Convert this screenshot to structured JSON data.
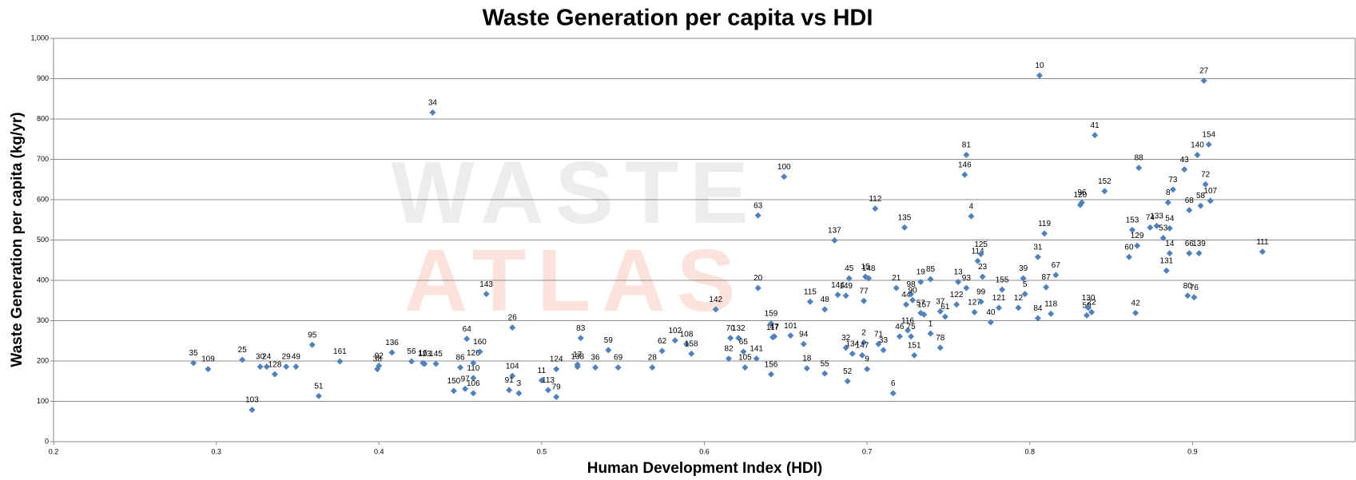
{
  "chart_data": {
    "type": "scatter",
    "title": "Waste Generation per capita vs HDI",
    "xlabel": "Human Development Index (HDI)",
    "ylabel": "Waste Generation per capita (kg/yr)",
    "watermark": [
      "WASTE",
      "ATLAS"
    ],
    "color": "#4f81bd",
    "grid": true,
    "xlim": [
      0.2,
      1.0
    ],
    "xticks": [
      0.2,
      0.3,
      0.4,
      0.5,
      0.6,
      0.7,
      0.8,
      0.9
    ],
    "ylim": [
      0,
      1000
    ],
    "yticks": [
      0,
      100,
      200,
      300,
      400,
      500,
      600,
      700,
      800,
      900,
      {
        "value": 1000,
        "label": "1,000"
      }
    ],
    "point_labels": [
      "35",
      "109",
      "25",
      "103",
      "30",
      "24",
      "128",
      "29",
      "49",
      "95",
      "51",
      "161",
      "92",
      "38",
      "136",
      "56",
      "16",
      "123",
      "145",
      "34",
      "150",
      "86",
      "97",
      "64",
      "110",
      "106",
      "126",
      "160",
      "143",
      "26",
      "104",
      "91",
      "3",
      "11",
      "113",
      "79",
      "124",
      "17",
      "138",
      "83",
      "36",
      "59",
      "69",
      "28",
      "62",
      "102",
      "108",
      "158",
      "142",
      "70",
      "132",
      "82",
      "65",
      "105",
      "141",
      "63",
      "20",
      "100",
      "159",
      "117",
      "47",
      "156",
      "101",
      "94",
      "18",
      "115",
      "48",
      "55",
      "137",
      "144",
      "149",
      "45",
      "32",
      "134",
      "52",
      "2",
      "147",
      "9",
      "15",
      "148",
      "77",
      "71",
      "33",
      "112",
      "6",
      "21",
      "135",
      "46",
      "116",
      "75",
      "151",
      "44",
      "98",
      "90",
      "57",
      "157",
      "19",
      "85",
      "1",
      "78",
      "37",
      "61",
      "122",
      "13",
      "93",
      "81",
      "146",
      "4",
      "127",
      "99",
      "114",
      "125",
      "23",
      "40",
      "121",
      "155",
      "12",
      "5",
      "39",
      "10",
      "31",
      "84",
      "119",
      "87",
      "118",
      "67",
      "120",
      "96",
      "50",
      "130",
      "22",
      "41",
      "152",
      "60",
      "153",
      "129",
      "42",
      "88",
      "74",
      "133",
      "53",
      "54",
      "14",
      "131",
      "8",
      "73",
      "43",
      "66",
      "68",
      "80",
      "76",
      "140",
      "154",
      "58",
      "72",
      "107",
      "139",
      "27",
      "111"
    ],
    "x": [
      0.286,
      0.295,
      0.316,
      0.322,
      0.327,
      0.331,
      0.336,
      0.343,
      0.349,
      0.359,
      0.363,
      0.376,
      0.4,
      0.399,
      0.408,
      0.42,
      0.427,
      0.428,
      0.435,
      0.433,
      0.446,
      0.45,
      0.453,
      0.454,
      0.458,
      0.458,
      0.458,
      0.462,
      0.466,
      0.482,
      0.482,
      0.48,
      0.486,
      0.5,
      0.504,
      0.509,
      0.509,
      0.522,
      0.522,
      0.524,
      0.533,
      0.541,
      0.547,
      0.568,
      0.574,
      0.582,
      0.589,
      0.592,
      0.607,
      0.616,
      0.621,
      0.615,
      0.624,
      0.625,
      0.632,
      0.633,
      0.633,
      0.649,
      0.641,
      0.642,
      0.643,
      0.641,
      0.653,
      0.661,
      0.663,
      0.665,
      0.674,
      0.674,
      0.68,
      0.682,
      0.687,
      0.689,
      0.687,
      0.691,
      0.688,
      0.698,
      0.697,
      0.7,
      0.699,
      0.701,
      0.698,
      0.707,
      0.71,
      0.705,
      0.716,
      0.718,
      0.723,
      0.72,
      0.725,
      0.727,
      0.729,
      0.724,
      0.727,
      0.728,
      0.733,
      0.735,
      0.733,
      0.739,
      0.739,
      0.745,
      0.745,
      0.748,
      0.755,
      0.756,
      0.761,
      0.761,
      0.76,
      0.764,
      0.766,
      0.77,
      0.768,
      0.77,
      0.771,
      0.776,
      0.781,
      0.783,
      0.793,
      0.797,
      0.796,
      0.806,
      0.805,
      0.805,
      0.809,
      0.81,
      0.813,
      0.816,
      0.831,
      0.832,
      0.835,
      0.836,
      0.838,
      0.84,
      0.846,
      0.861,
      0.863,
      0.866,
      0.865,
      0.867,
      0.874,
      0.878,
      0.882,
      0.886,
      0.886,
      0.884,
      0.885,
      0.888,
      0.895,
      0.898,
      0.898,
      0.897,
      0.901,
      0.903,
      0.91,
      0.905,
      0.908,
      0.911,
      0.904,
      0.907,
      0.943
    ],
    "values": [
      195,
      180,
      203,
      79,
      186,
      186,
      167,
      186,
      186,
      240,
      113,
      199,
      188,
      180,
      221,
      199,
      195,
      193,
      193,
      816,
      126,
      184,
      131,
      255,
      158,
      120,
      195,
      223,
      366,
      283,
      163,
      128,
      120,
      152,
      128,
      111,
      180,
      191,
      186,
      257,
      184,
      227,
      184,
      184,
      225,
      251,
      242,
      218,
      328,
      257,
      257,
      206,
      223,
      184,
      206,
      561,
      381,
      657,
      293,
      259,
      261,
      167,
      263,
      242,
      182,
      347,
      328,
      169,
      499,
      364,
      362,
      405,
      233,
      218,
      150,
      246,
      214,
      180,
      409,
      405,
      349,
      242,
      227,
      578,
      120,
      381,
      531,
      261,
      276,
      261,
      214,
      340,
      366,
      351,
      319,
      315,
      396,
      403,
      268,
      233,
      323,
      310,
      340,
      396,
      381,
      711,
      662,
      559,
      321,
      347,
      448,
      465,
      409,
      296,
      332,
      377,
      332,
      366,
      405,
      908,
      458,
      306,
      516,
      383,
      317,
      413,
      587,
      593,
      313,
      332,
      321,
      760,
      621,
      458,
      525,
      486,
      319,
      679,
      531,
      535,
      505,
      529,
      467,
      424,
      593,
      625,
      675,
      467,
      574,
      362,
      358,
      711,
      737,
      585,
      638,
      597,
      467,
      895,
      471
    ]
  }
}
